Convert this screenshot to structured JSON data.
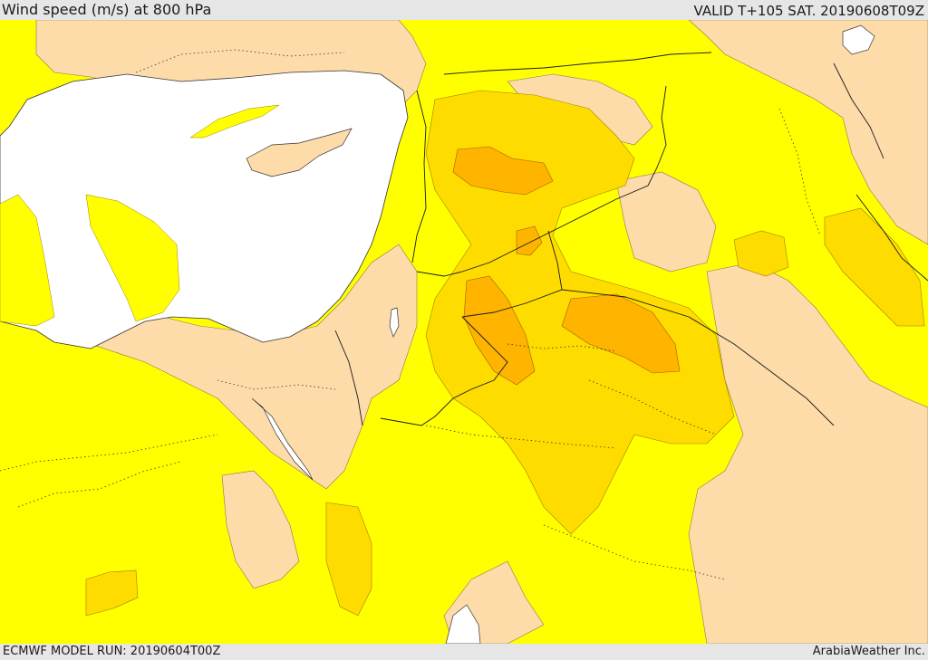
{
  "header": {
    "title": "Wind speed (m/s) at 800 hPa",
    "valid": "VALID T+105 SAT. 20190608T09Z"
  },
  "footer": {
    "model_run": "ECMWF MODEL RUN: 20190604T00Z",
    "credit": "ArabiaWeather Inc."
  },
  "colors": {
    "sea": "#ffffff",
    "land_calm": "#fddcaa",
    "wind_5_10": "#ffff00",
    "wind_10_15": "#ffdc00",
    "wind_15_20": "#ffb400",
    "border": "#1a1a1a"
  }
}
